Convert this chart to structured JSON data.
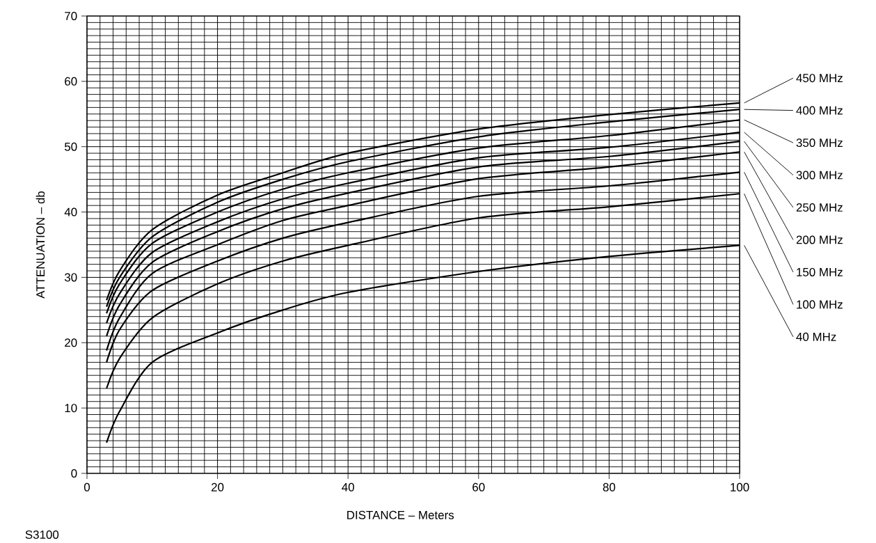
{
  "chart_data": {
    "type": "line",
    "xlabel": "DISTANCE – Meters",
    "ylabel": "ATTENUATION – db",
    "annotations": [
      "S3100"
    ],
    "x": [
      3,
      5,
      10,
      20,
      30,
      40,
      60,
      80,
      100
    ],
    "series": [
      {
        "name": "450 MHz",
        "color": "#000000",
        "values": [
          26.5,
          31.0,
          37.3,
          42.6,
          46.0,
          49.0,
          52.7,
          54.9,
          56.7
        ]
      },
      {
        "name": "400 MHz",
        "color": "#000000",
        "values": [
          25.5,
          30.0,
          36.2,
          41.5,
          45.0,
          47.7,
          51.5,
          53.8,
          55.7
        ]
      },
      {
        "name": "350 MHz",
        "color": "#000000",
        "values": [
          24.5,
          29.0,
          35.2,
          40.0,
          43.5,
          46.0,
          49.8,
          51.7,
          54.1
        ]
      },
      {
        "name": "300 MHz",
        "color": "#000000",
        "values": [
          23.0,
          27.5,
          33.8,
          38.5,
          42.0,
          44.4,
          48.3,
          49.9,
          52.2
        ]
      },
      {
        "name": "250 MHz",
        "color": "#000000",
        "values": [
          21.0,
          25.8,
          32.3,
          37.0,
          40.5,
          42.9,
          46.9,
          48.5,
          50.8
        ]
      },
      {
        "name": "200 MHz",
        "color": "#000000",
        "values": [
          18.8,
          23.8,
          30.6,
          35.0,
          38.7,
          41.0,
          45.1,
          46.9,
          49.2
        ]
      },
      {
        "name": "150 MHz",
        "color": "#000000",
        "values": [
          17.0,
          22.0,
          28.0,
          32.5,
          36.0,
          38.4,
          42.4,
          44.0,
          46.1
        ]
      },
      {
        "name": "100 MHz",
        "color": "#000000",
        "values": [
          13.0,
          17.6,
          23.8,
          29.0,
          32.5,
          34.9,
          39.1,
          40.8,
          42.8
        ]
      },
      {
        "name": "40 MHz",
        "color": "#000000",
        "values": [
          4.7,
          9.5,
          17.0,
          21.5,
          25.0,
          27.7,
          30.9,
          33.2,
          34.9
        ]
      }
    ],
    "xlim": [
      0,
      100
    ],
    "ylim": [
      0,
      70
    ],
    "xticks": [
      0,
      20,
      40,
      60,
      80,
      100
    ],
    "yticks": [
      0,
      10,
      20,
      30,
      40,
      50,
      60,
      70
    ],
    "grid": true,
    "legend": "right",
    "marker": "none",
    "line_style": "solid"
  }
}
